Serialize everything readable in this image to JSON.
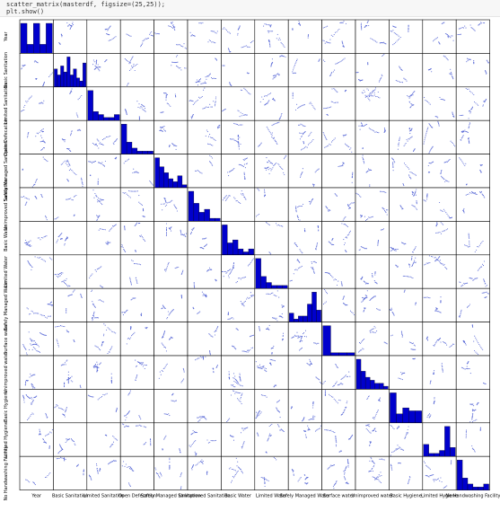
{
  "code_cell": {
    "lines": [
      "scatter_matrix(masterdf, figsize=(25,25));",
      "plt.show()"
    ]
  },
  "chart_data": {
    "type": "scatter_matrix",
    "variables": [
      "Year",
      "Basic Sanitation",
      "Limited Sanitation",
      "Open Defecation",
      "Safely Managed Sanitation",
      "Unimproved Sanitation",
      "Basic Water",
      "Limited Water",
      "Safely Managed Water",
      "Surface water",
      "Unimproved water",
      "Basic Hygiene",
      "Limited Hygiene",
      "No Handwashing Facility"
    ],
    "x_axis_labels": [
      "Year",
      "Basic Sanitation",
      "Limited Sanitation",
      "Open Defecation",
      "Safely Managed Sanitation",
      "Unimproved Sanitation",
      "Basic Water",
      "Limited Water",
      "Safely Managed Water",
      "Surface water",
      "Unimproved water",
      "Basic Hygiene",
      "Limited Hygiene",
      "No Handwashing Facility"
    ],
    "diagonal_histograms": [
      [
        10,
        3,
        10,
        3,
        10
      ],
      [
        6,
        4,
        7,
        5,
        10,
        4,
        6,
        3,
        2,
        8
      ],
      [
        10,
        3,
        2,
        1,
        1,
        2
      ],
      [
        10,
        4,
        2,
        1,
        1,
        1
      ],
      [
        10,
        7,
        5,
        3,
        2,
        4,
        1
      ],
      [
        10,
        6,
        3,
        4,
        1,
        1
      ],
      [
        10,
        4,
        5,
        2,
        1,
        2
      ],
      [
        10,
        4,
        2,
        1,
        1,
        1
      ],
      [
        3,
        1,
        2,
        2,
        6,
        10,
        4
      ],
      [
        10,
        1,
        1,
        1
      ],
      [
        10,
        6,
        4,
        3,
        2,
        2,
        1
      ],
      [
        10,
        3,
        5,
        4,
        4
      ],
      [
        4,
        1,
        1,
        2,
        10,
        3
      ],
      [
        10,
        4,
        2,
        1,
        1,
        2
      ]
    ],
    "colors": {
      "histogram": "#0000cc",
      "points": "#5a6ad6",
      "grid": "#000000"
    },
    "grid": false,
    "legend": "none"
  }
}
